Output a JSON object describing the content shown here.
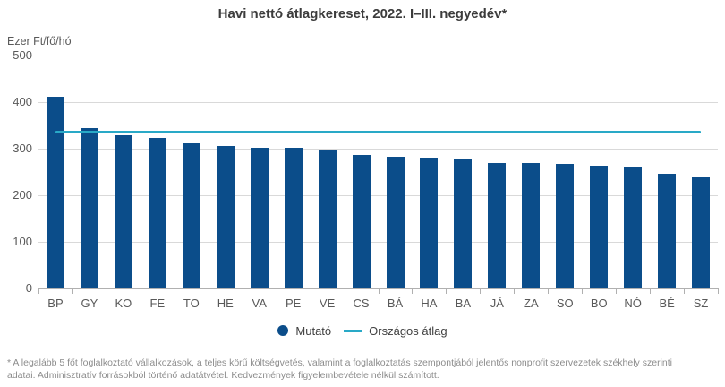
{
  "title": "Havi nettó átlagkereset, 2022. I–III. negyedév*",
  "y_axis_unit": "Ezer Ft/fő/hó",
  "legend": {
    "bars_label": "Mutató",
    "average_label": "Országos átlag"
  },
  "footnote_lines": [
    "* A legalább 5 főt foglalkoztató vállalkozások, a teljes körű költségvetés, valamint a foglalkoztatás szempontjából jelentős nonprofit szervezetek székhely szerinti",
    "adatai. Adminisztratív forrásokból történő adatátvétel. Kedvezmények figyelembevétele nélkül számított."
  ],
  "colors": {
    "bar": "#0b4d8a",
    "average_line": "#29a9c7",
    "gridline": "#d9d9d9",
    "axis": "#b0b0b0",
    "axis_text": "#595959",
    "title_text": "#3c3c3c",
    "footnote_text": "#8c8c8c"
  },
  "chart_data": {
    "type": "bar",
    "title": "Havi nettó átlagkereset, 2022. I–III. negyedév*",
    "xlabel": "",
    "ylabel": "Ezer Ft/fő/hó",
    "categories": [
      "BP",
      "GY",
      "KO",
      "FE",
      "TO",
      "HE",
      "VA",
      "PE",
      "VE",
      "CS",
      "BÁ",
      "HA",
      "BA",
      "JÁ",
      "ZA",
      "SO",
      "BO",
      "NÓ",
      "BÉ",
      "SZ"
    ],
    "values": [
      411,
      344,
      328,
      323,
      312,
      306,
      302,
      301,
      299,
      287,
      283,
      281,
      278,
      269,
      269,
      267,
      263,
      261,
      247,
      238
    ],
    "series_name": "Mutató",
    "average_line": {
      "label": "Országos átlag",
      "value": 336
    },
    "ylim": [
      0,
      500
    ],
    "yticks": [
      0,
      100,
      200,
      300,
      400,
      500
    ],
    "grid": true,
    "legend_position": "bottom"
  }
}
